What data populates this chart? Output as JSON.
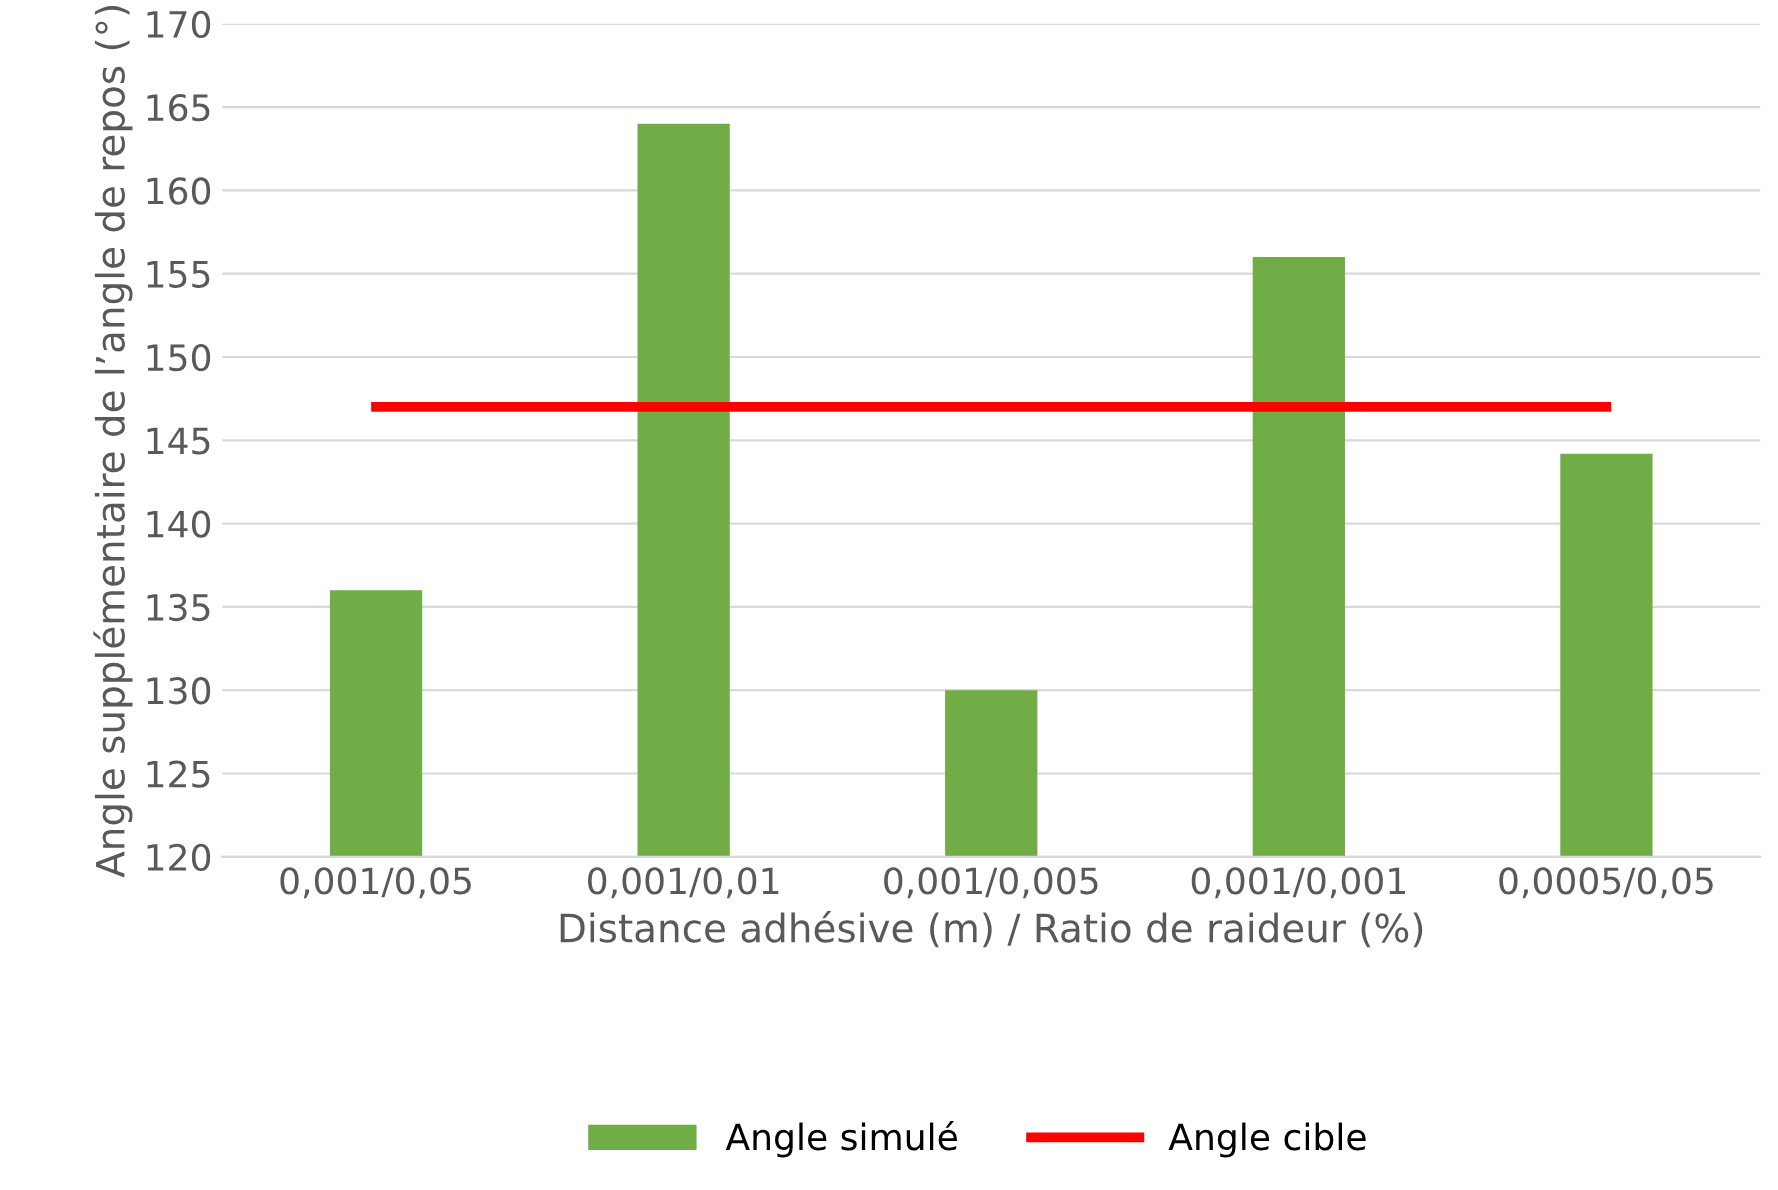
{
  "chart_data": {
    "type": "bar",
    "xlabel": "Distance adhésive (m) / Ratio de raideur (%)",
    "ylabel": "Angle supplémentaire de l’angle de repos (°)",
    "categories": [
      "0,001/0,05",
      "0,001/0,01",
      "0,001/0,005",
      "0,001/0,001",
      "0,0005/0,05"
    ],
    "series": [
      {
        "name": "Angle simulé",
        "color": "#70ad47",
        "values": [
          136,
          164,
          130,
          156,
          144.2
        ]
      },
      {
        "name": "Angle cible",
        "type": "line",
        "color": "#ff0000",
        "values": [
          147,
          147,
          147,
          147,
          147
        ]
      }
    ],
    "ylim": [
      120,
      170
    ],
    "yticks": [
      120,
      125,
      130,
      135,
      140,
      145,
      150,
      155,
      160,
      165,
      170
    ],
    "grid": "y",
    "legend": "bottom",
    "marker": "none",
    "line_style": "solid"
  }
}
